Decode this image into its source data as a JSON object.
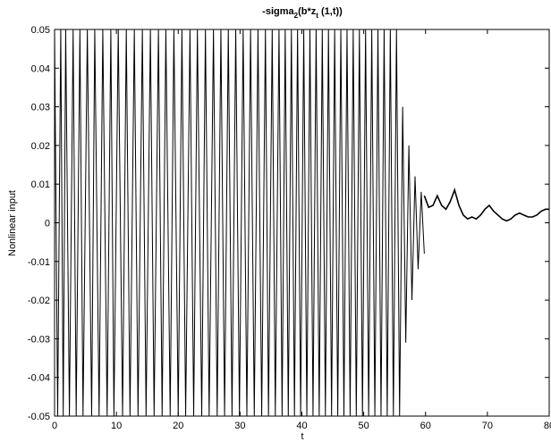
{
  "chart_data": {
    "type": "line",
    "title": "-sigma",
    "title_sub1": "2",
    "title_mid": "(b*z",
    "title_sub2": "t",
    "title_end": " (1,t))",
    "xlabel": "t",
    "ylabel": "Nonlinear input",
    "xlim": [
      0,
      80
    ],
    "ylim": [
      -0.05,
      0.05
    ],
    "x_ticks": [
      0,
      10,
      20,
      30,
      40,
      50,
      60,
      70,
      80
    ],
    "x_tick_labels": [
      "0",
      "10",
      "20",
      "30",
      "40",
      "50",
      "60",
      "70",
      "80"
    ],
    "y_ticks": [
      -0.05,
      -0.04,
      -0.03,
      -0.02,
      -0.01,
      0,
      0.01,
      0.02,
      0.03,
      0.04,
      0.05
    ],
    "y_tick_labels": [
      "-0.05",
      "-0.04",
      "-0.03",
      "-0.02",
      "-0.01",
      "0",
      "0.01",
      "0.02",
      "0.03",
      "0.04",
      "0.05"
    ],
    "grid": false,
    "line_color": "#000000",
    "series": [
      {
        "name": "",
        "x": [
          0,
          0.5,
          1,
          1.4,
          1.8,
          2.4,
          3,
          3.5,
          4.1,
          4.6,
          5.3,
          6,
          6.5,
          7.2,
          7.8,
          8.5,
          9.1,
          9.6,
          10.3,
          11,
          11.6,
          12.2,
          12.9,
          13.5,
          14.2,
          14.8,
          15.5,
          16.1,
          16.8,
          17.4,
          18,
          18.7,
          19.3,
          20,
          20.6,
          21.2,
          21.9,
          22.5,
          23.1,
          23.8,
          24.4,
          25,
          25.7,
          26.3,
          26.9,
          27.5,
          28.1,
          28.7,
          29.3,
          29.9,
          30.5,
          31.1,
          31.7,
          32.3,
          32.9,
          33.5,
          34.1,
          34.6,
          35.2,
          35.7,
          36.3,
          36.8,
          37.3,
          37.8,
          38.3,
          38.8,
          39.3,
          39.8,
          40.3,
          40.8,
          41.3,
          41.8,
          42.3,
          42.8,
          43.3,
          43.8,
          44.3,
          44.8,
          45.3,
          45.8,
          46.3,
          46.8,
          47.3,
          47.8,
          48.3,
          48.8,
          49.3,
          49.8,
          50.3,
          50.8,
          51.3,
          51.8,
          52.3,
          52.8,
          53.3,
          53.8,
          54.3,
          54.8,
          55.3,
          55.8,
          56.3,
          56.8,
          57.3,
          57.8,
          58.3,
          58.8,
          59.3,
          59.8
        ],
        "y": [
          0.05,
          -0.05,
          0.05,
          -0.05,
          0.05,
          -0.05,
          0.05,
          -0.05,
          0.05,
          -0.05,
          0.05,
          -0.05,
          0.05,
          -0.05,
          0.05,
          -0.05,
          0.05,
          -0.05,
          0.05,
          -0.05,
          0.05,
          -0.05,
          0.05,
          -0.05,
          0.05,
          -0.05,
          0.05,
          -0.05,
          0.05,
          -0.05,
          0.05,
          -0.05,
          0.05,
          -0.05,
          0.05,
          -0.05,
          0.05,
          -0.05,
          0.05,
          -0.05,
          0.05,
          -0.05,
          0.05,
          -0.05,
          0.05,
          -0.05,
          0.05,
          -0.05,
          0.05,
          -0.05,
          0.05,
          -0.05,
          0.05,
          -0.05,
          0.05,
          -0.05,
          0.05,
          -0.05,
          0.05,
          -0.05,
          0.05,
          -0.05,
          0.05,
          -0.05,
          0.05,
          -0.05,
          0.05,
          -0.05,
          0.05,
          -0.05,
          0.05,
          -0.05,
          0.05,
          -0.05,
          0.05,
          -0.05,
          0.05,
          -0.05,
          0.05,
          -0.05,
          0.05,
          -0.05,
          0.05,
          -0.05,
          0.05,
          -0.05,
          0.05,
          -0.05,
          0.05,
          -0.05,
          0.05,
          -0.05,
          0.05,
          -0.05,
          0.05,
          -0.05,
          0.05,
          -0.05,
          0.05,
          -0.05,
          0.03,
          -0.031,
          0.02,
          -0.02,
          0.012,
          -0.012,
          0.008,
          -0.008
        ]
      },
      {
        "name": "",
        "x": [
          59.8,
          60.5,
          61.2,
          61.9,
          62.6,
          63.3,
          64.0,
          64.7,
          65.4,
          66.1,
          66.8,
          67.5,
          68.2,
          68.9,
          69.6,
          70.3,
          71.0,
          71.7,
          72.4,
          73.1,
          73.8,
          74.5,
          75.2,
          75.9,
          76.6,
          77.3,
          78.0,
          78.7,
          79.4,
          80.0
        ],
        "y": [
          0.007,
          0.004,
          0.0045,
          0.007,
          0.0045,
          0.0035,
          0.0055,
          0.0085,
          0.0045,
          0.002,
          0.001,
          0.0015,
          0.001,
          0.002,
          0.0035,
          0.0045,
          0.003,
          0.002,
          0.001,
          0.0005,
          0.001,
          0.002,
          0.0025,
          0.002,
          0.0015,
          0.0015,
          0.002,
          0.003,
          0.0035,
          0.0035
        ]
      }
    ]
  }
}
